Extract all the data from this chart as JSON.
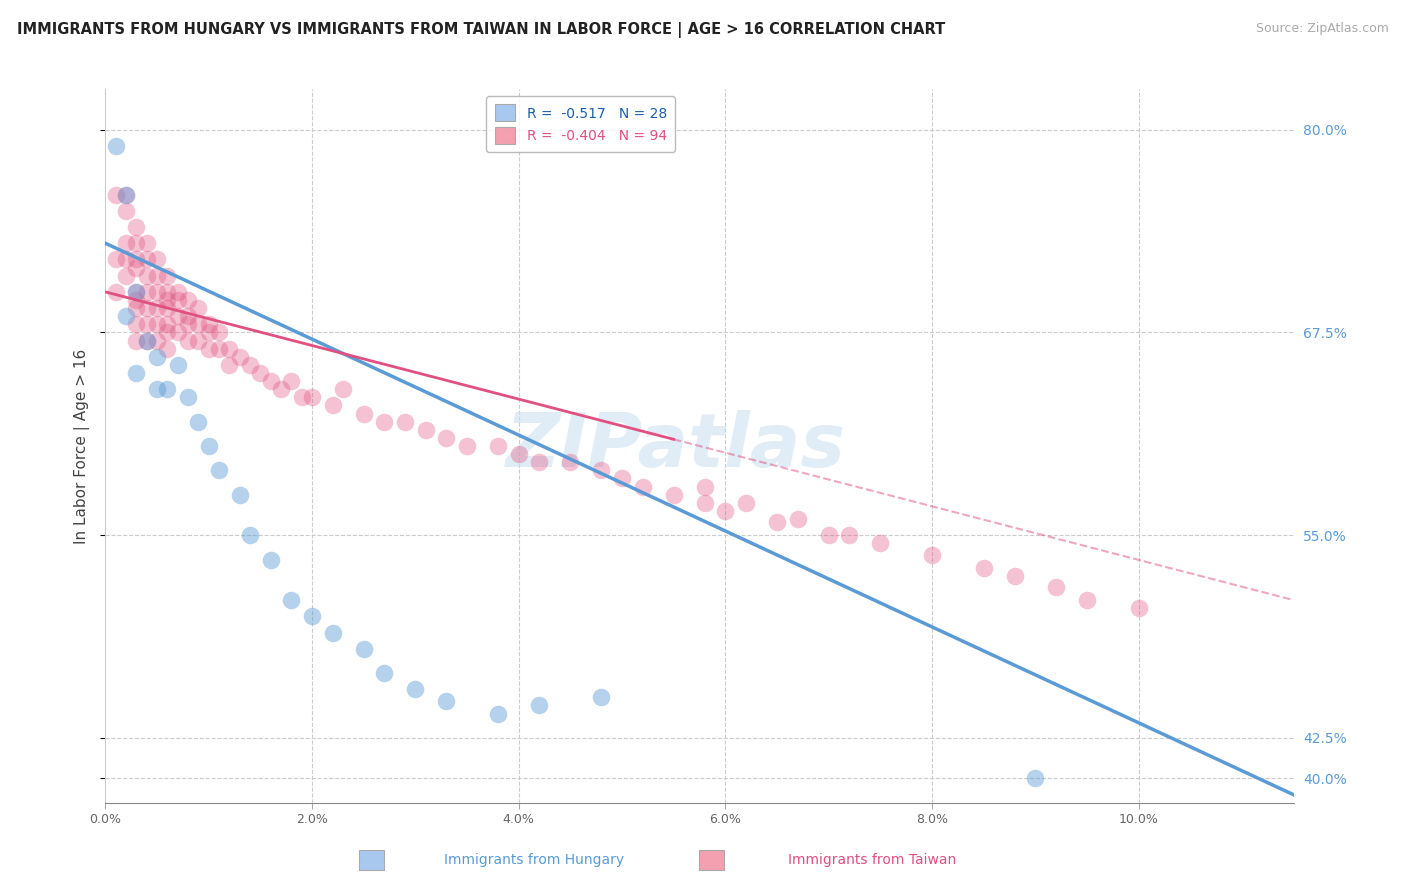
{
  "title": "IMMIGRANTS FROM HUNGARY VS IMMIGRANTS FROM TAIWAN IN LABOR FORCE | AGE > 16 CORRELATION CHART",
  "source": "Source: ZipAtlas.com",
  "ylabel": "In Labor Force | Age > 16",
  "xlim": [
    0.0,
    0.115
  ],
  "ylim": [
    0.385,
    0.825
  ],
  "yticks": [
    0.4,
    0.425,
    0.55,
    0.675,
    0.8
  ],
  "ytick_labels": [
    "40.0%",
    "42.5%",
    "55.0%",
    "67.5%",
    "80.0%"
  ],
  "xticks": [
    0.0,
    0.02,
    0.04,
    0.06,
    0.08,
    0.1
  ],
  "xtick_labels": [
    "0.0%",
    "2.0%",
    "4.0%",
    "6.0%",
    "8.0%",
    "10.0%"
  ],
  "legend_entries": [
    {
      "label": "R =  -0.517   N = 28",
      "color": "#a8c8f0"
    },
    {
      "label": "R =  -0.404   N = 94",
      "color": "#f4a0b0"
    }
  ],
  "watermark": "ZIPatlas",
  "hungary_scatter_x": [
    0.001,
    0.002,
    0.002,
    0.003,
    0.003,
    0.004,
    0.005,
    0.005,
    0.006,
    0.007,
    0.008,
    0.009,
    0.01,
    0.011,
    0.013,
    0.014,
    0.016,
    0.018,
    0.02,
    0.022,
    0.025,
    0.027,
    0.03,
    0.033,
    0.038,
    0.042,
    0.048,
    0.09
  ],
  "hungary_scatter_y": [
    0.79,
    0.685,
    0.76,
    0.7,
    0.65,
    0.67,
    0.66,
    0.64,
    0.64,
    0.655,
    0.635,
    0.62,
    0.605,
    0.59,
    0.575,
    0.55,
    0.535,
    0.51,
    0.5,
    0.49,
    0.48,
    0.465,
    0.455,
    0.448,
    0.44,
    0.445,
    0.45,
    0.4
  ],
  "taiwan_scatter_x": [
    0.001,
    0.001,
    0.001,
    0.002,
    0.002,
    0.002,
    0.002,
    0.002,
    0.003,
    0.003,
    0.003,
    0.003,
    0.003,
    0.003,
    0.003,
    0.003,
    0.003,
    0.004,
    0.004,
    0.004,
    0.004,
    0.004,
    0.004,
    0.004,
    0.005,
    0.005,
    0.005,
    0.005,
    0.005,
    0.005,
    0.006,
    0.006,
    0.006,
    0.006,
    0.006,
    0.006,
    0.006,
    0.007,
    0.007,
    0.007,
    0.007,
    0.008,
    0.008,
    0.008,
    0.008,
    0.009,
    0.009,
    0.009,
    0.01,
    0.01,
    0.01,
    0.011,
    0.011,
    0.012,
    0.012,
    0.013,
    0.014,
    0.015,
    0.016,
    0.017,
    0.018,
    0.019,
    0.02,
    0.022,
    0.023,
    0.025,
    0.027,
    0.029,
    0.031,
    0.033,
    0.035,
    0.038,
    0.04,
    0.042,
    0.045,
    0.048,
    0.05,
    0.052,
    0.055,
    0.058,
    0.06,
    0.065,
    0.07,
    0.075,
    0.08,
    0.085,
    0.088,
    0.092,
    0.095,
    0.1,
    0.058,
    0.062,
    0.067,
    0.072
  ],
  "taiwan_scatter_y": [
    0.76,
    0.72,
    0.7,
    0.76,
    0.75,
    0.73,
    0.72,
    0.71,
    0.74,
    0.73,
    0.72,
    0.715,
    0.7,
    0.695,
    0.69,
    0.68,
    0.67,
    0.73,
    0.72,
    0.71,
    0.7,
    0.69,
    0.68,
    0.67,
    0.72,
    0.71,
    0.7,
    0.69,
    0.68,
    0.67,
    0.71,
    0.7,
    0.695,
    0.69,
    0.68,
    0.675,
    0.665,
    0.7,
    0.695,
    0.685,
    0.675,
    0.695,
    0.685,
    0.68,
    0.67,
    0.69,
    0.68,
    0.67,
    0.68,
    0.675,
    0.665,
    0.675,
    0.665,
    0.665,
    0.655,
    0.66,
    0.655,
    0.65,
    0.645,
    0.64,
    0.645,
    0.635,
    0.635,
    0.63,
    0.64,
    0.625,
    0.62,
    0.62,
    0.615,
    0.61,
    0.605,
    0.605,
    0.6,
    0.595,
    0.595,
    0.59,
    0.585,
    0.58,
    0.575,
    0.57,
    0.565,
    0.558,
    0.55,
    0.545,
    0.538,
    0.53,
    0.525,
    0.518,
    0.51,
    0.505,
    0.58,
    0.57,
    0.56,
    0.55
  ],
  "hungary_line_x": [
    0.0,
    0.115
  ],
  "hungary_line_y": [
    0.73,
    0.39
  ],
  "taiwan_line_x": [
    0.0,
    0.115
  ],
  "taiwan_line_y": [
    0.7,
    0.51
  ],
  "hungary_color": "#5b9bd5",
  "taiwan_color": "#e05080",
  "grid_color": "#cccccc",
  "right_label_color": "#5b9bd5",
  "background_color": "#ffffff"
}
